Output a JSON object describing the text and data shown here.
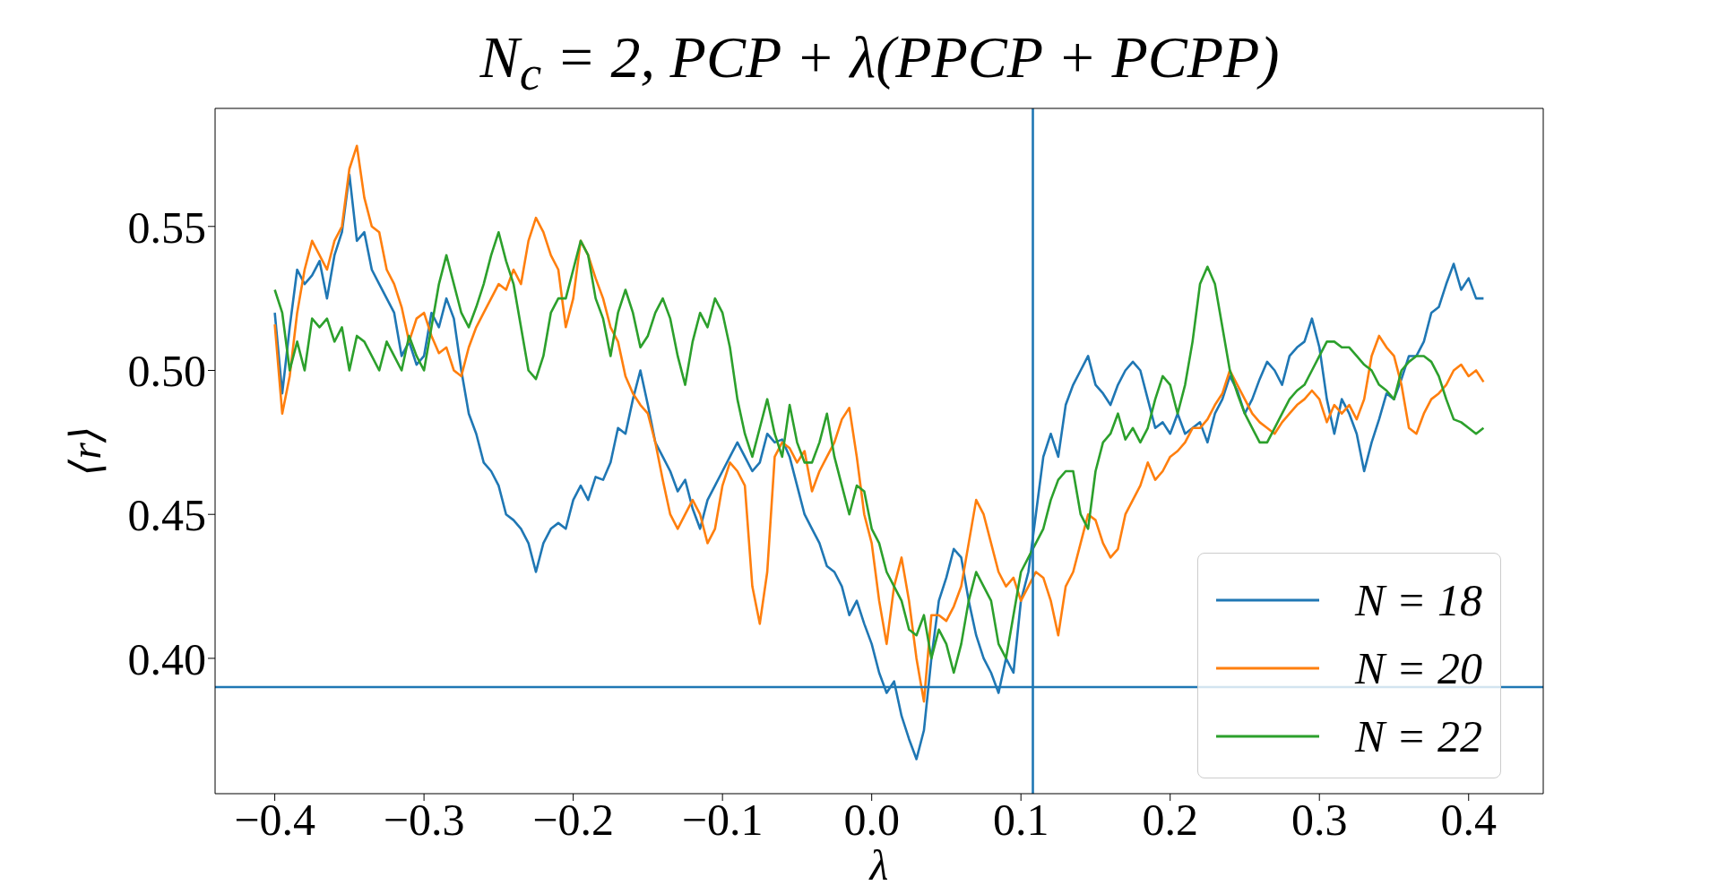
{
  "chart_data": {
    "type": "line",
    "title": "N$_{c}$ = 2, PCP + λ(PPCP + PCPP)",
    "xlabel": "λ",
    "ylabel": "⟨r⟩",
    "x": [
      -0.4,
      -0.395,
      -0.39,
      -0.385,
      -0.38,
      -0.375,
      -0.37,
      -0.365,
      -0.36,
      -0.355,
      -0.35,
      -0.345,
      -0.34,
      -0.335,
      -0.33,
      -0.325,
      -0.32,
      -0.315,
      -0.31,
      -0.305,
      -0.3,
      -0.295,
      -0.29,
      -0.285,
      -0.28,
      -0.275,
      -0.27,
      -0.265,
      -0.26,
      -0.255,
      -0.25,
      -0.245,
      -0.24,
      -0.235,
      -0.23,
      -0.225,
      -0.22,
      -0.215,
      -0.21,
      -0.205,
      -0.2,
      -0.195,
      -0.19,
      -0.185,
      -0.18,
      -0.175,
      -0.17,
      -0.165,
      -0.16,
      -0.155,
      -0.15,
      -0.145,
      -0.14,
      -0.135,
      -0.13,
      -0.125,
      -0.12,
      -0.115,
      -0.11,
      -0.105,
      -0.1,
      -0.095,
      -0.09,
      -0.085,
      -0.08,
      -0.075,
      -0.07,
      -0.065,
      -0.06,
      -0.055,
      -0.05,
      -0.045,
      -0.04,
      -0.035,
      -0.03,
      -0.025,
      -0.02,
      -0.015,
      -0.01,
      -0.005,
      0,
      0.005,
      0.01,
      0.015,
      0.02,
      0.025,
      0.03,
      0.035,
      0.04,
      0.045,
      0.05,
      0.055,
      0.06,
      0.065,
      0.07,
      0.075,
      0.08,
      0.085,
      0.09,
      0.095,
      0.1,
      0.105,
      0.11,
      0.115,
      0.12,
      0.125,
      0.13,
      0.135,
      0.14,
      0.145,
      0.15,
      0.155,
      0.16,
      0.165,
      0.17,
      0.175,
      0.18,
      0.185,
      0.19,
      0.195,
      0.2,
      0.205,
      0.21,
      0.215,
      0.22,
      0.225,
      0.23,
      0.235,
      0.24,
      0.245,
      0.25,
      0.255,
      0.26,
      0.265,
      0.27,
      0.275,
      0.28,
      0.285,
      0.29,
      0.295,
      0.3,
      0.305,
      0.31,
      0.315,
      0.32,
      0.325,
      0.33,
      0.335,
      0.34,
      0.345,
      0.35,
      0.355,
      0.36,
      0.365,
      0.37,
      0.375,
      0.38,
      0.385,
      0.39,
      0.395,
      0.4,
      0.405,
      0.41
    ],
    "series": [
      {
        "name": "N = 18",
        "color": "#1f77b4",
        "values": [
          0.52,
          0.492,
          0.515,
          0.535,
          0.53,
          0.533,
          0.538,
          0.525,
          0.54,
          0.548,
          0.568,
          0.545,
          0.548,
          0.535,
          0.53,
          0.525,
          0.52,
          0.505,
          0.51,
          0.502,
          0.505,
          0.52,
          0.515,
          0.525,
          0.518,
          0.5,
          0.485,
          0.478,
          0.468,
          0.465,
          0.46,
          0.45,
          0.448,
          0.445,
          0.44,
          0.43,
          0.44,
          0.445,
          0.447,
          0.445,
          0.455,
          0.46,
          0.455,
          0.463,
          0.462,
          0.468,
          0.48,
          0.478,
          0.49,
          0.5,
          0.488,
          0.475,
          0.47,
          0.465,
          0.458,
          0.462,
          0.452,
          0.445,
          0.455,
          0.46,
          0.465,
          0.47,
          0.475,
          0.47,
          0.465,
          0.468,
          0.478,
          0.475,
          0.476,
          0.47,
          0.46,
          0.45,
          0.445,
          0.44,
          0.432,
          0.43,
          0.425,
          0.415,
          0.42,
          0.412,
          0.405,
          0.395,
          0.388,
          0.392,
          0.38,
          0.372,
          0.365,
          0.375,
          0.4,
          0.42,
          0.428,
          0.438,
          0.435,
          0.42,
          0.408,
          0.4,
          0.395,
          0.388,
          0.4,
          0.395,
          0.42,
          0.43,
          0.45,
          0.47,
          0.478,
          0.47,
          0.488,
          0.495,
          0.5,
          0.505,
          0.495,
          0.492,
          0.488,
          0.495,
          0.5,
          0.503,
          0.5,
          0.49,
          0.48,
          0.482,
          0.478,
          0.485,
          0.478,
          0.48,
          0.482,
          0.475,
          0.485,
          0.49,
          0.498,
          0.493,
          0.485,
          0.49,
          0.497,
          0.503,
          0.5,
          0.495,
          0.505,
          0.508,
          0.51,
          0.518,
          0.508,
          0.49,
          0.478,
          0.49,
          0.485,
          0.478,
          0.465,
          0.475,
          0.483,
          0.492,
          0.49,
          0.497,
          0.505,
          0.505,
          0.51,
          0.52,
          0.522,
          0.53,
          0.537,
          0.528,
          0.532,
          0.525,
          0.525
        ]
      },
      {
        "name": "N = 20",
        "color": "#ff7f0e",
        "values": [
          0.516,
          0.485,
          0.498,
          0.52,
          0.535,
          0.545,
          0.54,
          0.535,
          0.545,
          0.55,
          0.57,
          0.578,
          0.56,
          0.55,
          0.548,
          0.535,
          0.53,
          0.522,
          0.51,
          0.518,
          0.52,
          0.512,
          0.506,
          0.508,
          0.5,
          0.498,
          0.508,
          0.515,
          0.52,
          0.525,
          0.53,
          0.528,
          0.535,
          0.53,
          0.545,
          0.553,
          0.548,
          0.54,
          0.535,
          0.515,
          0.525,
          0.545,
          0.54,
          0.532,
          0.525,
          0.515,
          0.51,
          0.498,
          0.492,
          0.488,
          0.485,
          0.475,
          0.462,
          0.45,
          0.445,
          0.45,
          0.455,
          0.45,
          0.44,
          0.445,
          0.46,
          0.468,
          0.465,
          0.46,
          0.425,
          0.412,
          0.43,
          0.47,
          0.475,
          0.473,
          0.468,
          0.472,
          0.458,
          0.465,
          0.47,
          0.475,
          0.483,
          0.487,
          0.47,
          0.45,
          0.44,
          0.42,
          0.405,
          0.425,
          0.435,
          0.42,
          0.4,
          0.385,
          0.415,
          0.415,
          0.413,
          0.418,
          0.425,
          0.44,
          0.455,
          0.45,
          0.44,
          0.43,
          0.425,
          0.428,
          0.42,
          0.425,
          0.43,
          0.428,
          0.42,
          0.408,
          0.425,
          0.43,
          0.44,
          0.45,
          0.448,
          0.44,
          0.435,
          0.438,
          0.45,
          0.455,
          0.46,
          0.468,
          0.462,
          0.465,
          0.47,
          0.472,
          0.475,
          0.48,
          0.48,
          0.483,
          0.488,
          0.492,
          0.5,
          0.495,
          0.49,
          0.485,
          0.482,
          0.48,
          0.478,
          0.482,
          0.485,
          0.488,
          0.49,
          0.493,
          0.49,
          0.482,
          0.488,
          0.485,
          0.488,
          0.483,
          0.49,
          0.505,
          0.512,
          0.508,
          0.505,
          0.495,
          0.48,
          0.478,
          0.485,
          0.49,
          0.492,
          0.495,
          0.5,
          0.502,
          0.498,
          0.5,
          0.496
        ]
      },
      {
        "name": "N = 22",
        "color": "#2ca02c",
        "values": [
          0.528,
          0.52,
          0.5,
          0.51,
          0.5,
          0.518,
          0.515,
          0.518,
          0.51,
          0.515,
          0.5,
          0.512,
          0.51,
          0.505,
          0.5,
          0.51,
          0.505,
          0.5,
          0.512,
          0.505,
          0.5,
          0.515,
          0.53,
          0.54,
          0.53,
          0.52,
          0.515,
          0.522,
          0.53,
          0.54,
          0.548,
          0.538,
          0.53,
          0.515,
          0.5,
          0.497,
          0.505,
          0.52,
          0.525,
          0.525,
          0.535,
          0.545,
          0.54,
          0.525,
          0.518,
          0.505,
          0.52,
          0.528,
          0.52,
          0.508,
          0.512,
          0.52,
          0.525,
          0.518,
          0.505,
          0.495,
          0.51,
          0.52,
          0.515,
          0.525,
          0.52,
          0.508,
          0.49,
          0.478,
          0.47,
          0.48,
          0.49,
          0.478,
          0.47,
          0.488,
          0.475,
          0.468,
          0.468,
          0.475,
          0.485,
          0.47,
          0.46,
          0.45,
          0.46,
          0.458,
          0.445,
          0.44,
          0.43,
          0.425,
          0.42,
          0.41,
          0.408,
          0.415,
          0.4,
          0.41,
          0.405,
          0.395,
          0.405,
          0.42,
          0.43,
          0.425,
          0.42,
          0.405,
          0.4,
          0.415,
          0.43,
          0.435,
          0.44,
          0.445,
          0.455,
          0.462,
          0.465,
          0.465,
          0.45,
          0.445,
          0.465,
          0.475,
          0.478,
          0.485,
          0.476,
          0.48,
          0.475,
          0.48,
          0.49,
          0.498,
          0.495,
          0.485,
          0.495,
          0.51,
          0.53,
          0.536,
          0.53,
          0.515,
          0.5,
          0.492,
          0.485,
          0.48,
          0.475,
          0.475,
          0.48,
          0.485,
          0.49,
          0.493,
          0.495,
          0.5,
          0.505,
          0.51,
          0.51,
          0.508,
          0.508,
          0.505,
          0.502,
          0.5,
          0.495,
          0.493,
          0.49,
          0.5,
          0.503,
          0.505,
          0.505,
          0.503,
          0.498,
          0.49,
          0.483,
          0.482,
          0.48,
          0.478,
          0.48
        ]
      }
    ],
    "xlim": [
      -0.44,
      0.45
    ],
    "xticks": [
      {
        "value": -0.4,
        "label": "−0.4"
      },
      {
        "value": -0.3,
        "label": "−0.3"
      },
      {
        "value": -0.2,
        "label": "−0.2"
      },
      {
        "value": -0.1,
        "label": "−0.1"
      },
      {
        "value": 0,
        "label": "0.0"
      },
      0.1,
      0.2,
      0.3,
      0.4
    ],
    "ylim": [
      0.353,
      0.591
    ],
    "yticks": [
      {
        "value": 0.4,
        "label": "0.40"
      },
      0.45,
      {
        "value": 0.5,
        "label": "0.50"
      },
      0.55
    ],
    "ref_lines": [
      {
        "axis": "x",
        "value": 0.108,
        "color": "#1f77b4"
      },
      {
        "axis": "y",
        "value": 0.39,
        "color": "#1f77b4"
      }
    ],
    "legend": "bottom right",
    "grid": false,
    "marker": "none",
    "line_style": "solid"
  }
}
